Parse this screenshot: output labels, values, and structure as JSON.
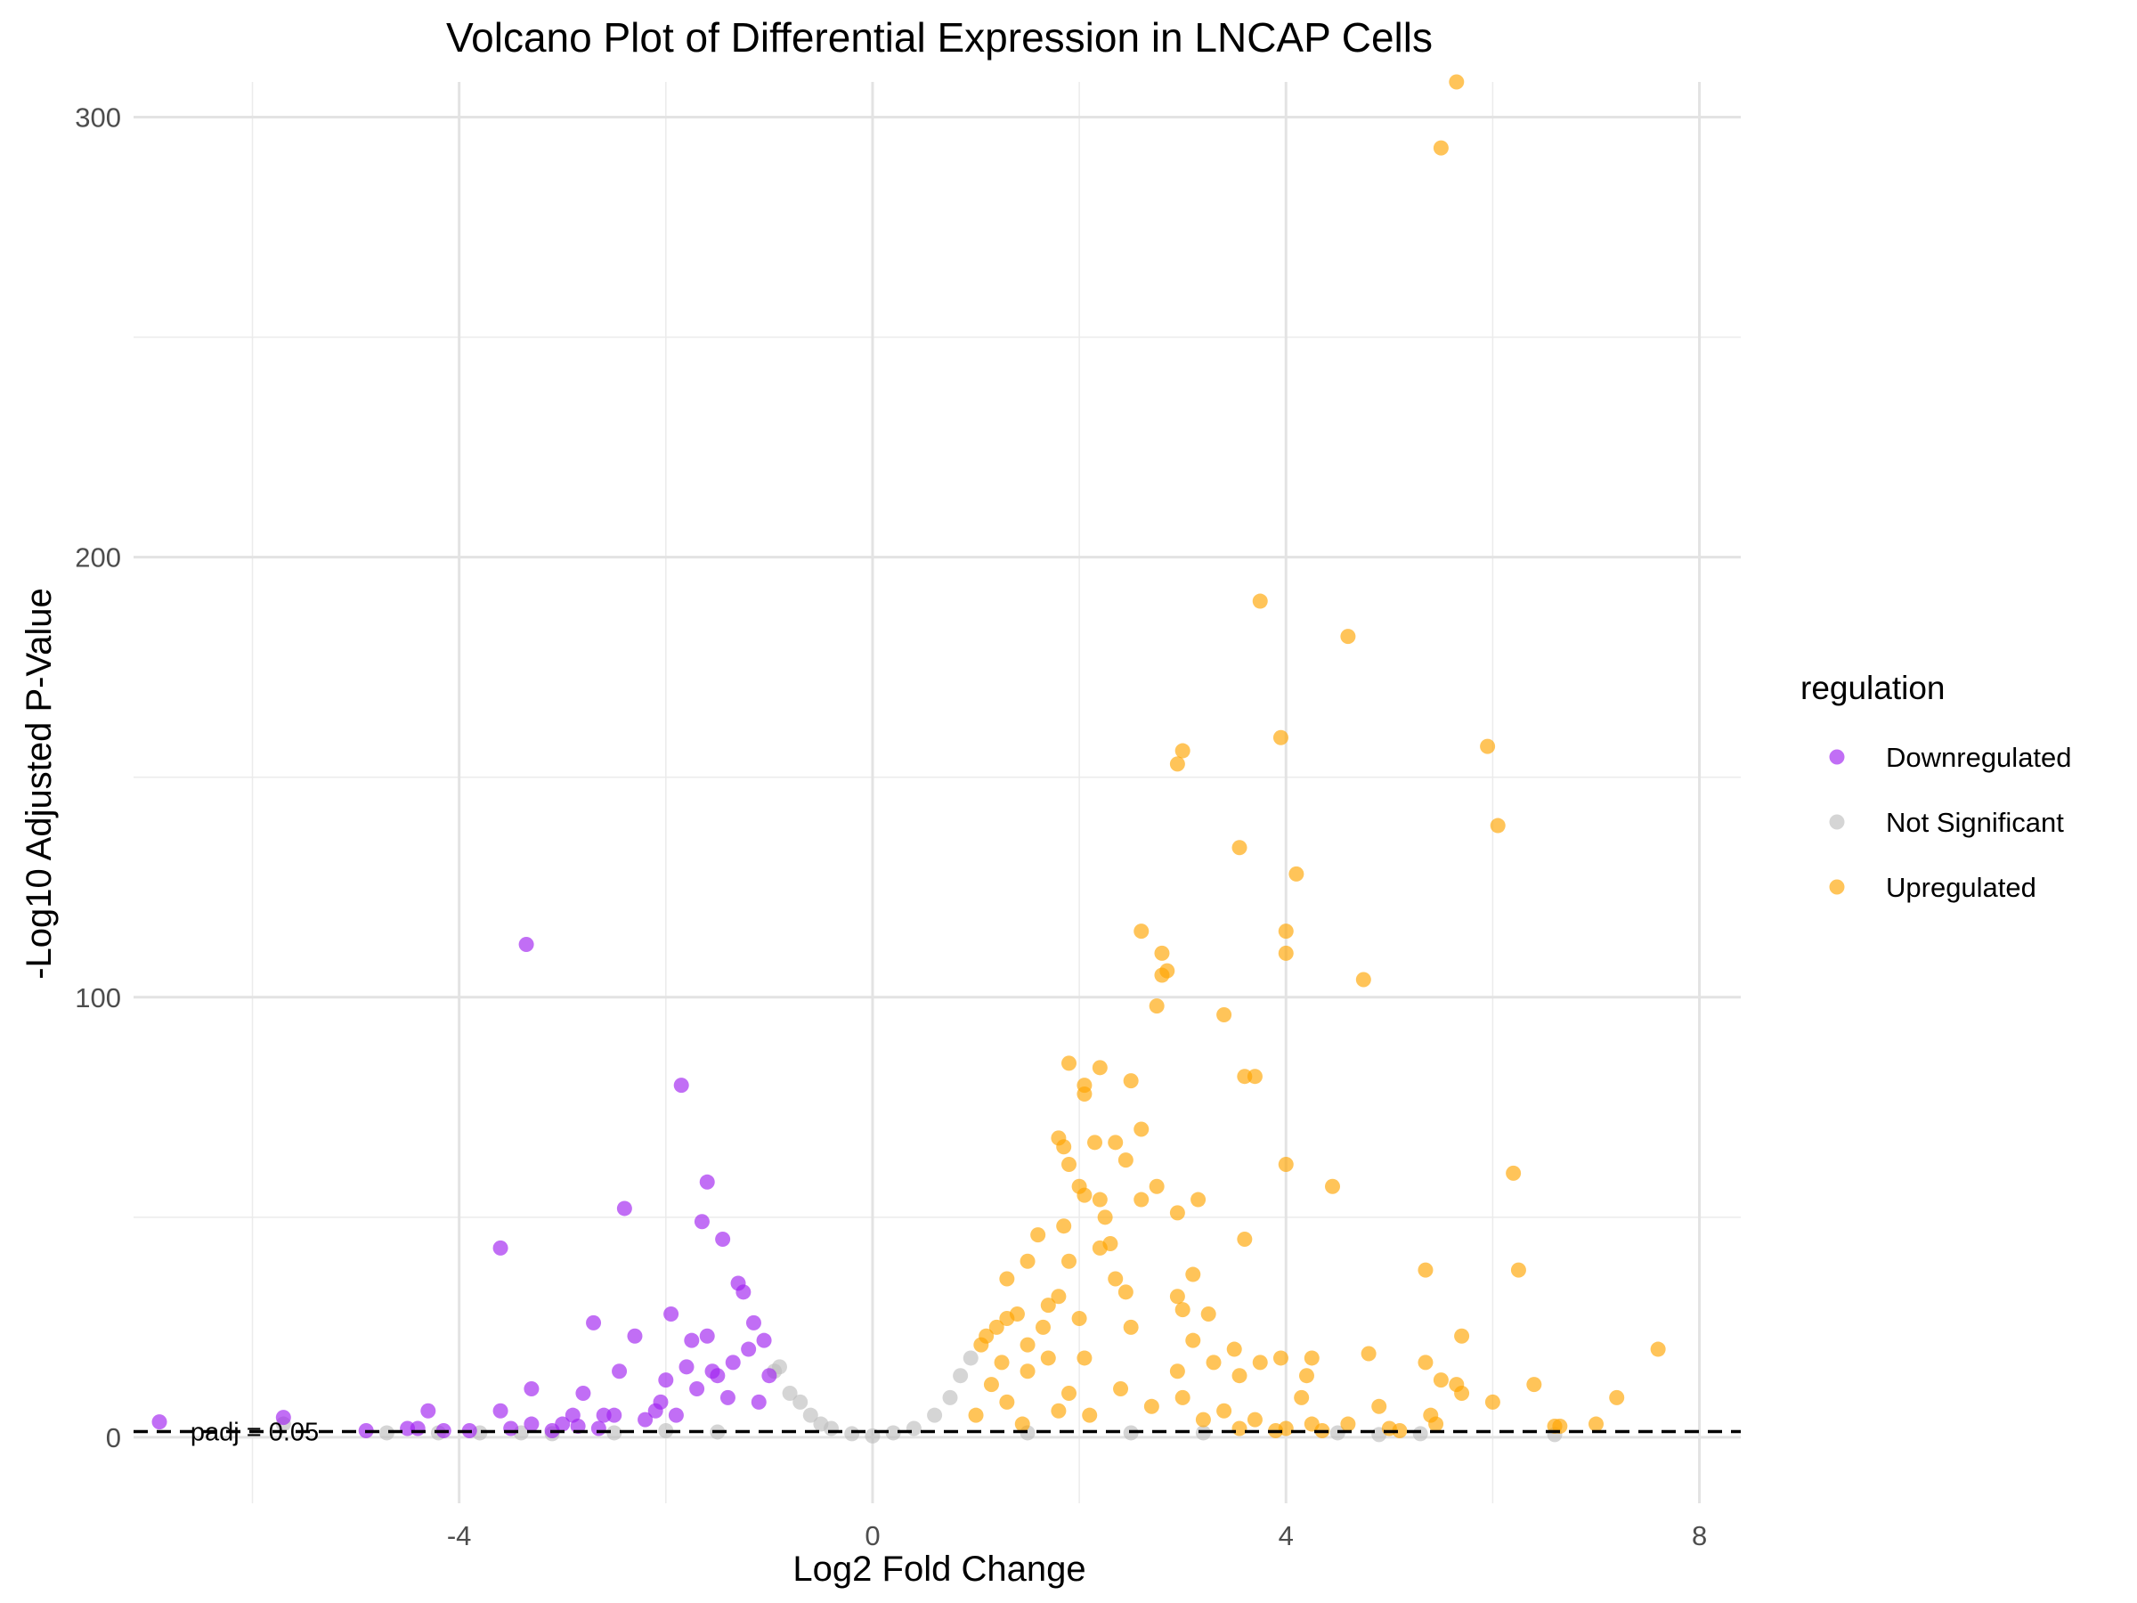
{
  "chart_data": {
    "type": "scatter",
    "title": "Volcano Plot of Differential Expression in LNCAP Cells",
    "xlabel": "Log2 Fold Change",
    "ylabel": "-Log10 Adjusted P-Value",
    "xlim": [
      -7.15,
      8.4
    ],
    "ylim": [
      -15,
      308
    ],
    "x_ticks": [
      -4,
      0,
      4,
      8
    ],
    "x_tick_labels": [
      "-4",
      "0",
      "4",
      "8"
    ],
    "y_ticks": [
      0,
      100,
      200,
      300
    ],
    "y_tick_labels": [
      "0",
      "100",
      "200",
      "300"
    ],
    "x_minor_gridlines": [
      -6,
      -2,
      2,
      6
    ],
    "y_minor_gridlines": [
      50,
      150,
      250
    ],
    "grid": true,
    "threshold_line": {
      "y": 1.301,
      "style": "dashed",
      "color": "#000000"
    },
    "threshold_label": {
      "text": "padj = 0.05",
      "x": -6.6,
      "y": 1.301
    },
    "legend": {
      "title": "regulation",
      "position": "right",
      "entries": [
        {
          "label": "Downregulated",
          "color": "#A020F0"
        },
        {
          "label": "Not Significant",
          "color": "#BEBEBE"
        },
        {
          "label": "Upregulated",
          "color": "#FFA500"
        }
      ]
    },
    "point_opacity": 0.65,
    "series": [
      {
        "name": "Downregulated",
        "color": "#A020F0",
        "points": [
          [
            -6.9,
            3.5
          ],
          [
            -5.7,
            4.5
          ],
          [
            -4.9,
            1.5
          ],
          [
            -4.5,
            2
          ],
          [
            -4.4,
            2
          ],
          [
            -4.3,
            6
          ],
          [
            -4.15,
            1.5
          ],
          [
            -3.9,
            1.5
          ],
          [
            -3.6,
            6
          ],
          [
            -3.6,
            43
          ],
          [
            -3.5,
            2
          ],
          [
            -3.35,
            112
          ],
          [
            -3.3,
            11
          ],
          [
            -3.3,
            3
          ],
          [
            -3.1,
            1.5
          ],
          [
            -3.0,
            3
          ],
          [
            -2.9,
            5
          ],
          [
            -2.85,
            2.5
          ],
          [
            -2.8,
            10
          ],
          [
            -2.7,
            26
          ],
          [
            -2.65,
            2
          ],
          [
            -2.6,
            5
          ],
          [
            -2.5,
            5
          ],
          [
            -2.45,
            15
          ],
          [
            -2.4,
            52
          ],
          [
            -2.3,
            23
          ],
          [
            -2.2,
            4
          ],
          [
            -2.1,
            6
          ],
          [
            -2.05,
            8
          ],
          [
            -2.0,
            13
          ],
          [
            -1.95,
            28
          ],
          [
            -1.9,
            5
          ],
          [
            -1.85,
            80
          ],
          [
            -1.8,
            16
          ],
          [
            -1.75,
            22
          ],
          [
            -1.7,
            11
          ],
          [
            -1.65,
            49
          ],
          [
            -1.6,
            23
          ],
          [
            -1.6,
            58
          ],
          [
            -1.55,
            15
          ],
          [
            -1.5,
            14
          ],
          [
            -1.45,
            45
          ],
          [
            -1.4,
            9
          ],
          [
            -1.35,
            17
          ],
          [
            -1.3,
            35
          ],
          [
            -1.25,
            33
          ],
          [
            -1.2,
            20
          ],
          [
            -1.15,
            26
          ],
          [
            -1.1,
            8
          ],
          [
            -1.05,
            22
          ],
          [
            -1.0,
            14
          ]
        ]
      },
      {
        "name": "Not Significant",
        "color": "#BEBEBE",
        "points": [
          [
            -5.7,
            3
          ],
          [
            -4.7,
            1
          ],
          [
            -4.2,
            1
          ],
          [
            -3.8,
            1
          ],
          [
            -3.4,
            1
          ],
          [
            -3.1,
            0.8
          ],
          [
            -2.5,
            1
          ],
          [
            -2.0,
            1.5
          ],
          [
            -1.5,
            1.2
          ],
          [
            -0.95,
            15
          ],
          [
            -0.9,
            16
          ],
          [
            -0.8,
            10
          ],
          [
            -0.7,
            8
          ],
          [
            -0.6,
            5
          ],
          [
            -0.5,
            3
          ],
          [
            -0.4,
            2
          ],
          [
            -0.2,
            0.8
          ],
          [
            0.0,
            0.3
          ],
          [
            0.2,
            1
          ],
          [
            0.4,
            2
          ],
          [
            0.6,
            5
          ],
          [
            0.75,
            9
          ],
          [
            0.85,
            14
          ],
          [
            0.95,
            18
          ],
          [
            1.5,
            1
          ],
          [
            2.5,
            1
          ],
          [
            3.2,
            1
          ],
          [
            4.5,
            1
          ],
          [
            4.9,
            0.6
          ],
          [
            5.3,
            0.8
          ],
          [
            6.6,
            0.6
          ]
        ]
      },
      {
        "name": "Upregulated",
        "color": "#FFA500",
        "points": [
          [
            5.65,
            308
          ],
          [
            5.5,
            293
          ],
          [
            3.75,
            190
          ],
          [
            4.6,
            182
          ],
          [
            3.0,
            156
          ],
          [
            3.95,
            159
          ],
          [
            5.95,
            157
          ],
          [
            2.95,
            153
          ],
          [
            6.05,
            139
          ],
          [
            3.55,
            134
          ],
          [
            4.1,
            128
          ],
          [
            2.6,
            115
          ],
          [
            4.0,
            115
          ],
          [
            2.8,
            110
          ],
          [
            4.0,
            110
          ],
          [
            2.85,
            106
          ],
          [
            2.8,
            105
          ],
          [
            4.75,
            104
          ],
          [
            2.75,
            98
          ],
          [
            3.4,
            96
          ],
          [
            1.9,
            85
          ],
          [
            2.2,
            84
          ],
          [
            2.5,
            81
          ],
          [
            2.05,
            80
          ],
          [
            3.6,
            82
          ],
          [
            3.7,
            82
          ],
          [
            2.05,
            78
          ],
          [
            2.6,
            70
          ],
          [
            1.8,
            68
          ],
          [
            2.15,
            67
          ],
          [
            2.35,
            67
          ],
          [
            1.85,
            66
          ],
          [
            2.45,
            63
          ],
          [
            1.9,
            62
          ],
          [
            4.0,
            62
          ],
          [
            6.2,
            60
          ],
          [
            2.0,
            57
          ],
          [
            2.75,
            57
          ],
          [
            4.45,
            57
          ],
          [
            2.05,
            55
          ],
          [
            2.2,
            54
          ],
          [
            3.15,
            54
          ],
          [
            2.6,
            54
          ],
          [
            2.95,
            51
          ],
          [
            2.25,
            50
          ],
          [
            1.85,
            48
          ],
          [
            3.6,
            45
          ],
          [
            1.6,
            46
          ],
          [
            2.3,
            44
          ],
          [
            2.2,
            43
          ],
          [
            5.35,
            38
          ],
          [
            6.25,
            38
          ],
          [
            3.1,
            37
          ],
          [
            1.5,
            40
          ],
          [
            1.9,
            40
          ],
          [
            2.35,
            36
          ],
          [
            1.3,
            36
          ],
          [
            2.45,
            33
          ],
          [
            1.8,
            32
          ],
          [
            2.95,
            32
          ],
          [
            1.7,
            30
          ],
          [
            3.0,
            29
          ],
          [
            1.4,
            28
          ],
          [
            3.25,
            28
          ],
          [
            2.0,
            27
          ],
          [
            1.3,
            27
          ],
          [
            1.2,
            25
          ],
          [
            1.65,
            25
          ],
          [
            2.5,
            25
          ],
          [
            1.1,
            23
          ],
          [
            3.1,
            22
          ],
          [
            5.7,
            23
          ],
          [
            1.05,
            21
          ],
          [
            1.5,
            21
          ],
          [
            3.5,
            20
          ],
          [
            7.6,
            20
          ],
          [
            4.8,
            19
          ],
          [
            1.7,
            18
          ],
          [
            2.05,
            18
          ],
          [
            3.95,
            18
          ],
          [
            4.25,
            18
          ],
          [
            1.25,
            17
          ],
          [
            3.3,
            17
          ],
          [
            3.75,
            17
          ],
          [
            5.35,
            17
          ],
          [
            2.95,
            15
          ],
          [
            1.5,
            15
          ],
          [
            3.55,
            14
          ],
          [
            4.2,
            14
          ],
          [
            5.5,
            13
          ],
          [
            1.15,
            12
          ],
          [
            5.65,
            12
          ],
          [
            6.4,
            12
          ],
          [
            2.4,
            11
          ],
          [
            5.7,
            10
          ],
          [
            1.9,
            10
          ],
          [
            3.0,
            9
          ],
          [
            4.15,
            9
          ],
          [
            7.2,
            9
          ],
          [
            6.0,
            8
          ],
          [
            1.3,
            8
          ],
          [
            2.7,
            7
          ],
          [
            4.9,
            7
          ],
          [
            3.4,
            6
          ],
          [
            1.8,
            6
          ],
          [
            5.4,
            5
          ],
          [
            2.1,
            5
          ],
          [
            1.0,
            5
          ],
          [
            3.7,
            4
          ],
          [
            3.2,
            4
          ],
          [
            5.45,
            3
          ],
          [
            7.0,
            3
          ],
          [
            4.6,
            3
          ],
          [
            4.25,
            3
          ],
          [
            1.45,
            3
          ],
          [
            6.6,
            2.5
          ],
          [
            6.65,
            2.5
          ],
          [
            4.0,
            2
          ],
          [
            3.55,
            2
          ],
          [
            5.0,
            2
          ],
          [
            4.35,
            1.5
          ],
          [
            5.1,
            1.5
          ],
          [
            3.9,
            1.5
          ]
        ]
      }
    ]
  }
}
